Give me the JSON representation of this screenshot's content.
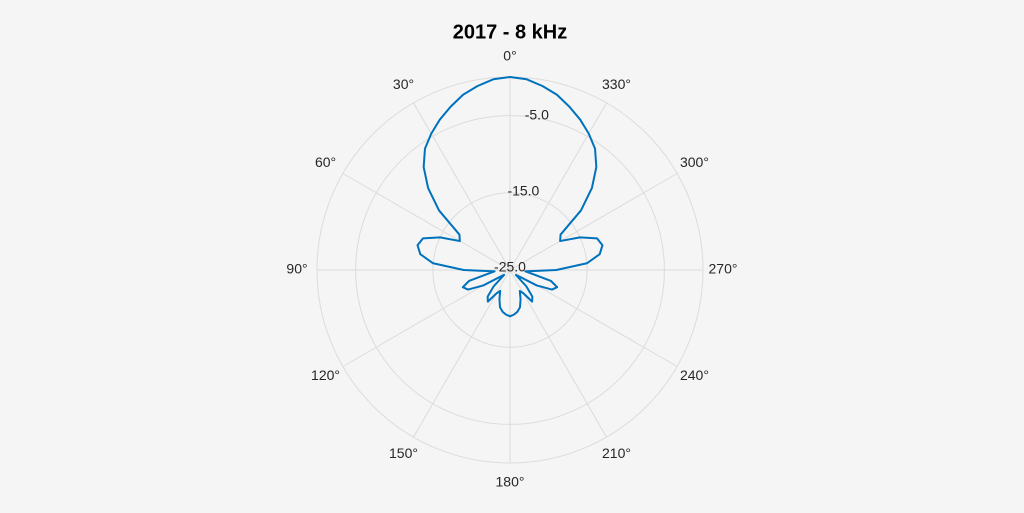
{
  "chart_data": {
    "type": "polar",
    "title": "2017 - 8 kHz",
    "theta": [
      0,
      5,
      10,
      15,
      20,
      25,
      30,
      35,
      40,
      45,
      50,
      55,
      60,
      65,
      70,
      75,
      80,
      85,
      90,
      95,
      100,
      105,
      110,
      115,
      120,
      125,
      130,
      135,
      140,
      145,
      150,
      155,
      160,
      165,
      170,
      175,
      180,
      185,
      190,
      195,
      200,
      205,
      210,
      215,
      220,
      225,
      230,
      235,
      240,
      245,
      250,
      255,
      260,
      265,
      270,
      275,
      280,
      285,
      290,
      295,
      300,
      305,
      310,
      315,
      320,
      325,
      330,
      335,
      340,
      345,
      350,
      355
    ],
    "values": [
      0,
      -0.2,
      -0.8,
      -1.5,
      -2.5,
      -3.5,
      -4.6,
      -5.8,
      -7.6,
      -10,
      -13,
      -17,
      -17.5,
      -15,
      -13,
      -12.6,
      -13.2,
      -15,
      -19,
      -23,
      -22,
      -19.5,
      -18.5,
      -19,
      -21,
      -23.5,
      -24,
      -22,
      -20.5,
      -20,
      -21.5,
      -22,
      -21,
      -20,
      -19.5,
      -19.2,
      -19,
      -19.2,
      -19.5,
      -20,
      -21,
      -22,
      -21.5,
      -20,
      -20.5,
      -22,
      -24,
      -23.5,
      -21,
      -19,
      -18.5,
      -19.5,
      -22,
      -23,
      -19,
      -15,
      -13.2,
      -12.6,
      -13,
      -15,
      -17.5,
      -17,
      -13,
      -10,
      -7.6,
      -5.8,
      -4.6,
      -3.5,
      -2.5,
      -1.5,
      -0.8,
      -0.2
    ],
    "color": "#0072bd",
    "rlim": [
      -25,
      0
    ],
    "rticks": [
      {
        "value": -25,
        "label": "-25.0"
      },
      {
        "value": -15,
        "label": "-15.0"
      },
      {
        "value": -5,
        "label": "-5.0"
      }
    ],
    "thetaticks": [
      {
        "value": 0,
        "label": "0°"
      },
      {
        "value": 30,
        "label": "30°"
      },
      {
        "value": 60,
        "label": "60°"
      },
      {
        "value": 90,
        "label": "90°"
      },
      {
        "value": 120,
        "label": "120°"
      },
      {
        "value": 150,
        "label": "150°"
      },
      {
        "value": 180,
        "label": "180°"
      },
      {
        "value": 210,
        "label": "210°"
      },
      {
        "value": 240,
        "label": "240°"
      },
      {
        "value": 270,
        "label": "270°"
      },
      {
        "value": 300,
        "label": "300°"
      },
      {
        "value": 330,
        "label": "330°"
      }
    ],
    "grid": true
  }
}
